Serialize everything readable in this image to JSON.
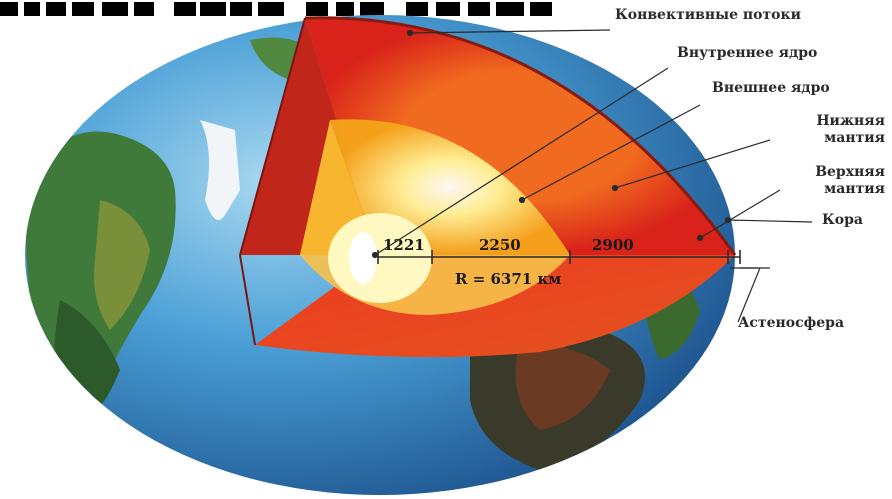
{
  "labels": {
    "convective_currents": "Конвективные потоки",
    "inner_core": "Внутреннее ядро",
    "outer_core": "Внешнее ядро",
    "lower_mantle": [
      "Нижняя",
      "мантия"
    ],
    "upper_mantle": [
      "Верхняя",
      "мантия"
    ],
    "crust": "Кора",
    "asthenosphere": "Астеносфера"
  },
  "measurements": {
    "inner_core_radius": "1221",
    "outer_core_thickness": "2250",
    "mantle_thickness": "2900",
    "total_radius": "R = 6371 км"
  },
  "colors": {
    "ocean": "#2f7fc4",
    "land": "#3f7a3a",
    "crust": "#c62a1a",
    "mantle": "#e8361f",
    "outer_core": "#f7a81f",
    "inner_core": "#fff3a0",
    "line": "#2a2a2a"
  }
}
